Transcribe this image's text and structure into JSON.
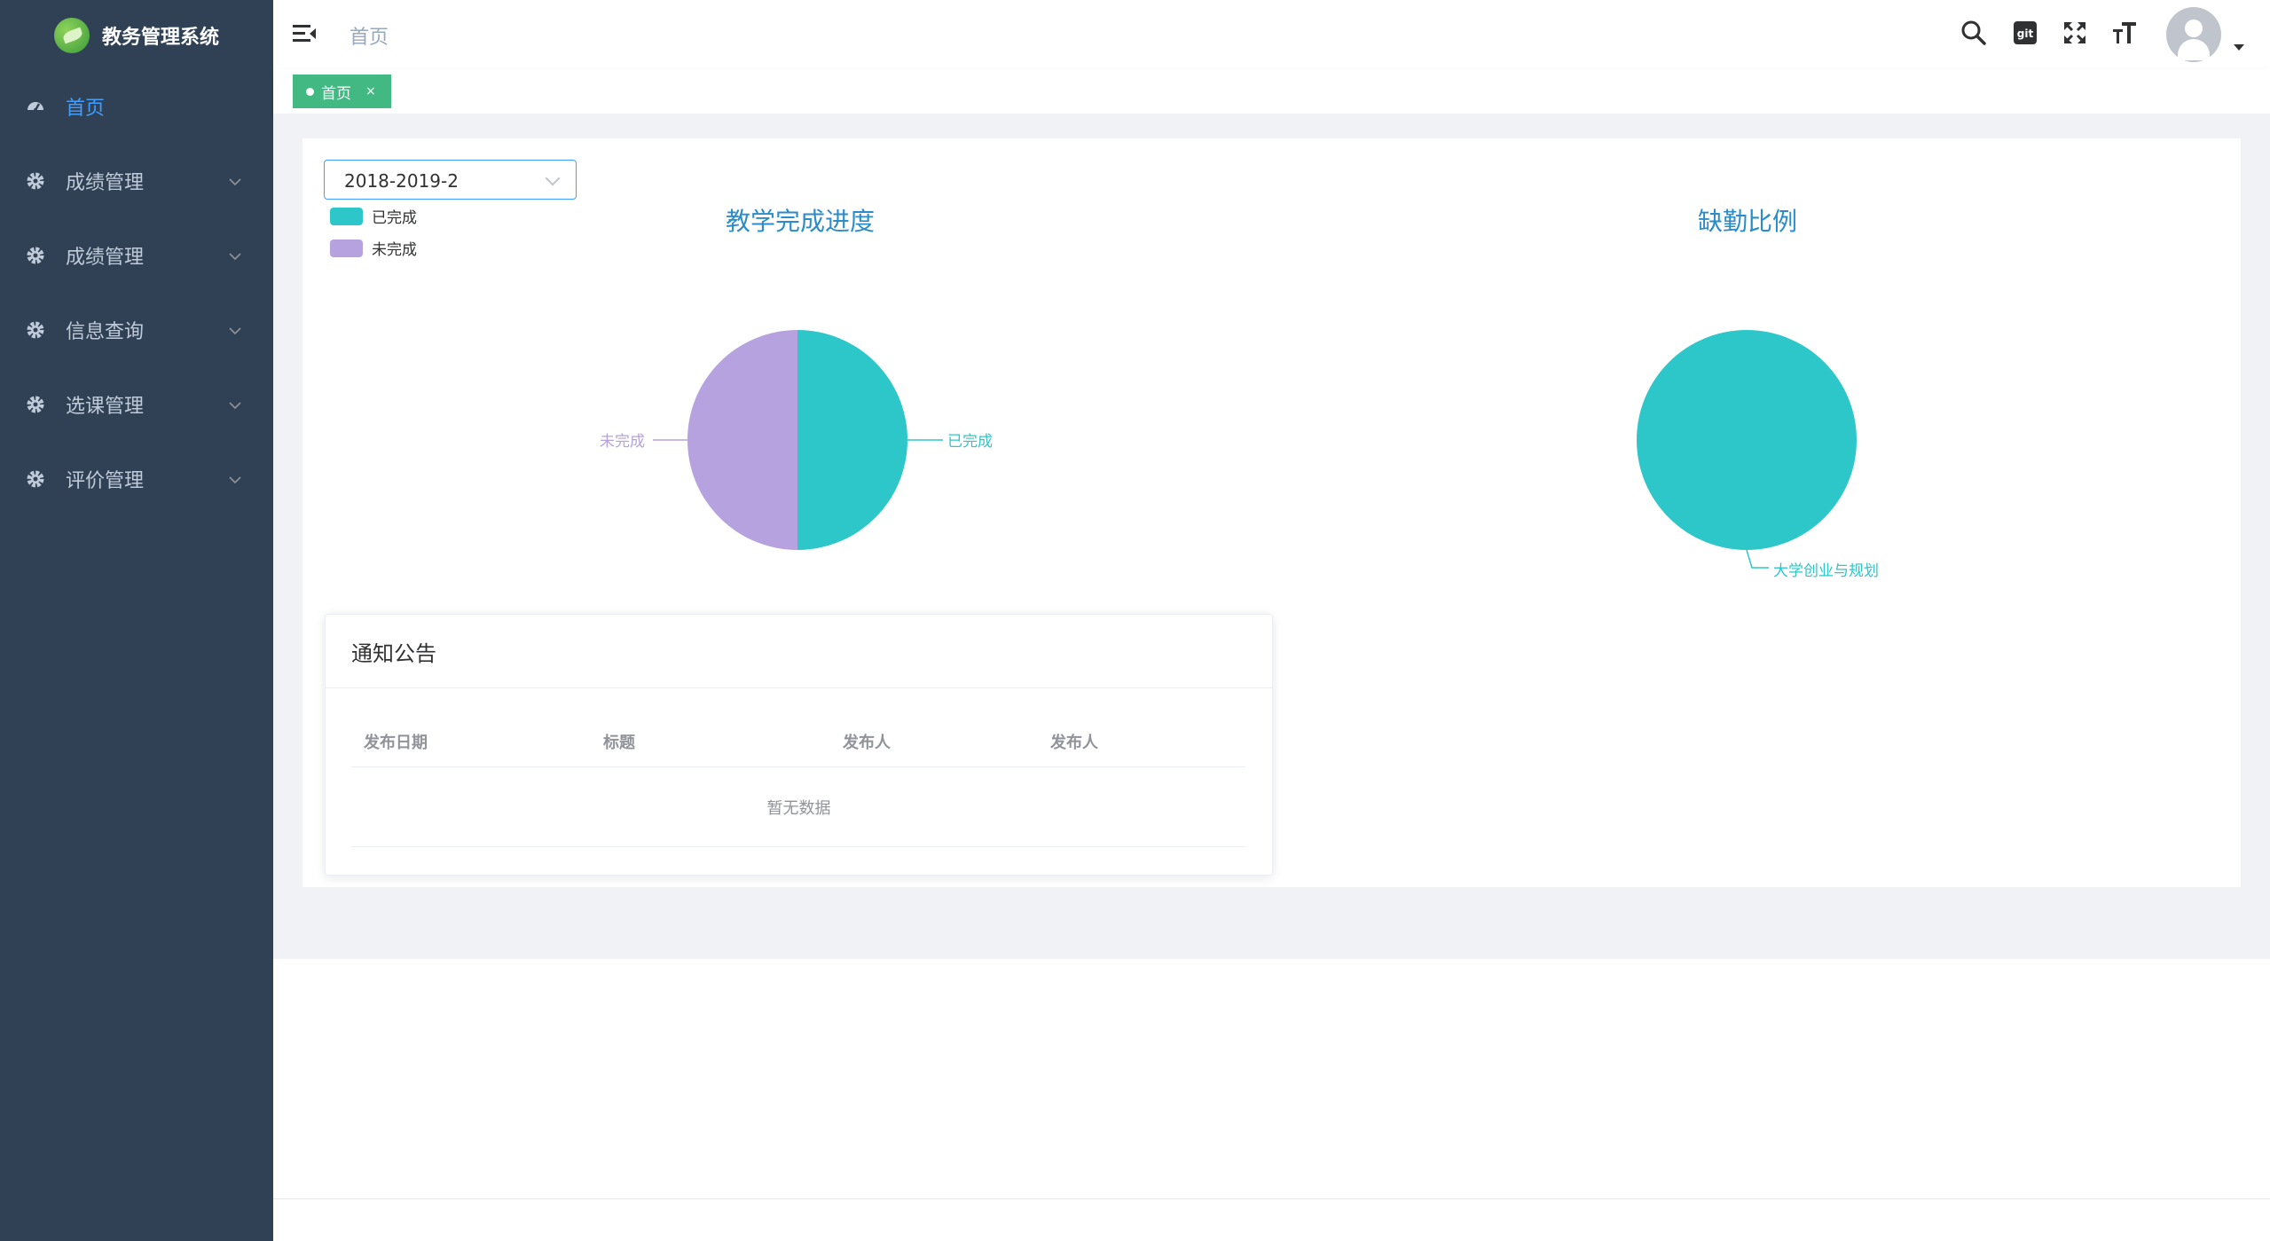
{
  "app": {
    "title": "教务管理系统"
  },
  "sidebar": {
    "items": [
      {
        "label": "首页",
        "icon": "dashboard-icon",
        "active": true
      },
      {
        "label": "成绩管理",
        "icon": "gear-icon"
      },
      {
        "label": "成绩管理",
        "icon": "gear-icon"
      },
      {
        "label": "信息查询",
        "icon": "gear-icon"
      },
      {
        "label": "选课管理",
        "icon": "gear-icon"
      },
      {
        "label": "评价管理",
        "icon": "gear-icon"
      }
    ]
  },
  "header": {
    "breadcrumb": "首页",
    "icons": [
      "search-icon",
      "git-icon",
      "fullscreen-icon",
      "font-size-icon",
      "avatar"
    ]
  },
  "tags": [
    {
      "label": "首页",
      "close": "×"
    }
  ],
  "semester_select": {
    "value": "2018-2019-2"
  },
  "colors": {
    "completed": "#2ec7c9",
    "incomplete": "#b6a2de",
    "accent": "#409eff",
    "tag": "#42b983",
    "sidebar": "#304156"
  },
  "chart_data": [
    {
      "type": "pie",
      "title": "教学完成进度",
      "legend": [
        "已完成",
        "未完成"
      ],
      "legend_position": "top-left",
      "slices": [
        {
          "label": "已完成",
          "value": 50,
          "color": "#2ec7c9"
        },
        {
          "label": "未完成",
          "value": 50,
          "color": "#b6a2de"
        }
      ]
    },
    {
      "type": "pie",
      "title": "缺勤比例",
      "slices": [
        {
          "label": "大学创业与规划",
          "value": 100,
          "color": "#2ec7c9"
        }
      ]
    }
  ],
  "notice": {
    "title": "通知公告",
    "columns": [
      "发布日期",
      "标题",
      "发布人",
      "发布人"
    ],
    "rows": [],
    "empty_text": "暂无数据"
  }
}
